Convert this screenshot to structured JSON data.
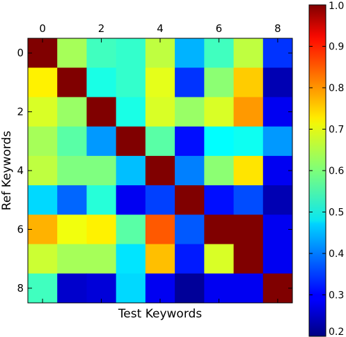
{
  "chart_data": {
    "type": "heatmap",
    "title": "",
    "xlabel": "Test Keywords",
    "ylabel": "Ref Keywords",
    "x_tick_labels": [
      "0",
      "2",
      "4",
      "6",
      "8"
    ],
    "y_tick_labels": [
      "0",
      "2",
      "4",
      "6",
      "8"
    ],
    "colormap": "jet",
    "color_range": [
      0.2,
      1.0
    ],
    "colorbar_tick_labels": [
      "0.2",
      "0.3",
      "0.4",
      "0.5",
      "0.6",
      "0.7",
      "0.8",
      "0.9",
      "1.0"
    ],
    "matrix": [
      [
        1.0,
        0.63,
        0.55,
        0.54,
        0.65,
        0.44,
        0.55,
        0.65,
        0.34
      ],
      [
        0.71,
        1.0,
        0.52,
        0.54,
        0.68,
        0.34,
        0.61,
        0.74,
        0.24
      ],
      [
        0.67,
        0.62,
        1.0,
        0.52,
        0.67,
        0.62,
        0.67,
        0.78,
        0.29
      ],
      [
        0.63,
        0.57,
        0.42,
        1.0,
        0.57,
        0.31,
        0.5,
        0.51,
        0.42
      ],
      [
        0.65,
        0.6,
        0.6,
        0.45,
        1.0,
        0.4,
        0.61,
        0.72,
        0.29
      ],
      [
        0.47,
        0.38,
        0.53,
        0.29,
        0.35,
        1.0,
        0.31,
        0.36,
        0.24
      ],
      [
        0.76,
        0.69,
        0.71,
        0.57,
        0.83,
        0.37,
        1.0,
        1.0,
        0.29
      ],
      [
        0.66,
        0.63,
        0.63,
        0.48,
        0.75,
        0.32,
        0.67,
        1.0,
        0.29
      ],
      [
        0.55,
        0.26,
        0.27,
        0.47,
        0.29,
        0.22,
        0.29,
        0.29,
        1.0
      ]
    ],
    "grid": false,
    "colorbar": "right"
  }
}
